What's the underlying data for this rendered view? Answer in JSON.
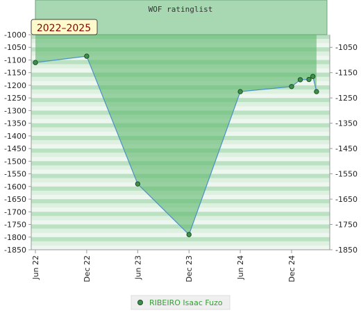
{
  "chart_data": {
    "type": "area",
    "title": "WOF ratinglist",
    "badge": "2022–2025",
    "legend": {
      "position": "bottom-center",
      "entries": [
        "RIBEIRO Isaac Fuzo"
      ]
    },
    "colors": {
      "fill": "#5fb86d",
      "line": "#4a90c8",
      "marker": "#3f8f4c",
      "band_dark": "#8fcf9b",
      "band_light": "#d9efdc"
    },
    "x_ticks": [
      "Jun 22",
      "Dec 22",
      "Jun 23",
      "Dec 23",
      "Jun 24",
      "Dec 24"
    ],
    "y_left": {
      "ticks": [
        -1000,
        -1050,
        -1100,
        -1150,
        -1200,
        -1250,
        -1300,
        -1350,
        -1400,
        -1450,
        -1500,
        -1550,
        -1600,
        -1650,
        -1700,
        -1750,
        -1800,
        -1850
      ],
      "range": [
        -1850,
        -1000
      ]
    },
    "y_right": {
      "ticks": [
        -1050,
        -1150,
        -1250,
        -1350,
        -1450,
        -1550,
        -1650,
        -1750,
        -1850
      ],
      "range": [
        -1850,
        -1000
      ]
    },
    "xlim": [
      "2022-06-01",
      "2025-02-28"
    ],
    "grid": "horizontal bands",
    "series": [
      {
        "name": "RIBEIRO Isaac Fuzo",
        "points": [
          {
            "x": "2022-06-01",
            "y": -1110
          },
          {
            "x": "2022-12-01",
            "y": -1085
          },
          {
            "x": "2023-06-01",
            "y": -1590
          },
          {
            "x": "2023-12-01",
            "y": -1790
          },
          {
            "x": "2024-06-01",
            "y": -1225
          },
          {
            "x": "2024-12-01",
            "y": -1205
          },
          {
            "x": "2025-01-01",
            "y": -1178
          },
          {
            "x": "2025-02-01",
            "y": -1177
          },
          {
            "x": "2025-02-15",
            "y": -1165
          },
          {
            "x": "2025-02-28",
            "y": -1225
          }
        ]
      }
    ]
  }
}
